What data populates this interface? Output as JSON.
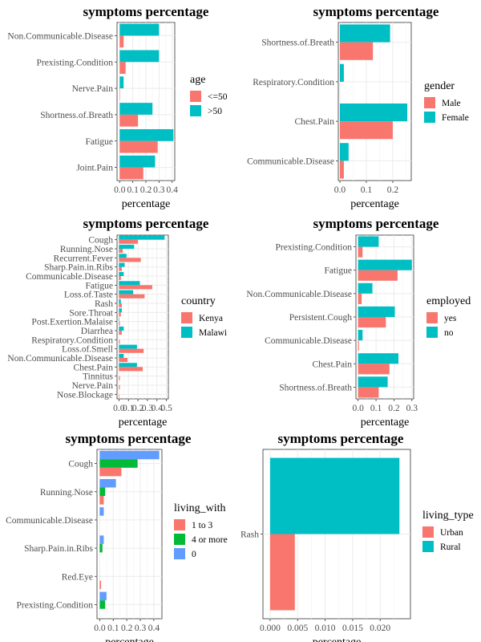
{
  "chart_data": [
    {
      "type": "bar",
      "orientation": "horizontal",
      "title": "symptoms percentage",
      "xlabel": "percentage",
      "ylabel": "",
      "xlim": [
        -0.02,
        0.42
      ],
      "xticks": [
        0.0,
        0.1,
        0.2,
        0.3,
        0.4
      ],
      "xtick_labels": [
        "0.0",
        "0.1",
        "0.2",
        "0.3",
        "0.4"
      ],
      "categories": [
        "Non.Communicable.Disease",
        "Prexisting.Condition",
        "Nerve.Pain",
        "Shortness.of.Breath",
        "Fatigue",
        "Joint.Pain"
      ],
      "legend_title": "age",
      "series": [
        {
          "name": "<=50",
          "color": "#F8766D",
          "values": [
            0.03,
            0.045,
            0.003,
            0.14,
            0.29,
            0.18
          ]
        },
        {
          "name": ">50",
          "color": "#00BFC4",
          "values": [
            0.3,
            0.3,
            0.03,
            0.25,
            0.41,
            0.27
          ]
        }
      ],
      "grid": true,
      "legend_position": "right"
    },
    {
      "type": "bar",
      "orientation": "horizontal",
      "title": "symptoms percentage",
      "xlabel": "percentage",
      "ylabel": "",
      "xlim": [
        -0.006,
        0.27
      ],
      "xticks": [
        0.0,
        0.1,
        0.2
      ],
      "xtick_labels": [
        "0.0",
        "0.1",
        "0.2"
      ],
      "categories": [
        "Shortness.of.Breath",
        "Respiratory.Condition",
        "Chest.Pain",
        "Communicable.Disease"
      ],
      "legend_title": "gender",
      "series": [
        {
          "name": "Male",
          "color": "#F8766D",
          "values": [
            0.125,
            0.0,
            0.2,
            0.015
          ]
        },
        {
          "name": "Female",
          "color": "#00BFC4",
          "values": [
            0.19,
            0.015,
            0.255,
            0.033
          ]
        }
      ],
      "grid": true,
      "legend_position": "right"
    },
    {
      "type": "bar",
      "orientation": "horizontal",
      "title": "symptoms percentage",
      "xlabel": "percentage",
      "ylabel": "",
      "xlim": [
        -0.02,
        0.52
      ],
      "xticks": [
        0.0,
        0.1,
        0.2,
        0.3,
        0.4,
        0.5
      ],
      "xtick_labels": [
        "0.0",
        "0.1",
        "0.2",
        "0.3",
        "0.4",
        "0.5"
      ],
      "categories": [
        "Cough",
        "Running.Nose",
        "Recurrent.Fever",
        "Sharp.Pain.in.Ribs",
        "Communicable.Disease",
        "Fatigue",
        "Loss.of.Taste",
        "Rash",
        "Sore.Throat",
        "Post.Exertion.Malaise",
        "Diarrhea",
        "Respiratory.Condition",
        "Loss.of.Smell",
        "Non.Communicable.Disease",
        "Chest.Pain",
        "Tinnitus",
        "Nerve.Pain",
        "Nose.Blockage"
      ],
      "legend_title": "country",
      "series": [
        {
          "name": "Kenya",
          "color": "#F8766D",
          "values": [
            0.2,
            0.04,
            0.23,
            0.03,
            0.02,
            0.35,
            0.27,
            0.03,
            0.02,
            0.01,
            0.03,
            0.01,
            0.26,
            0.09,
            0.25,
            0.01,
            0.01,
            0.005
          ]
        },
        {
          "name": "Malawi",
          "color": "#00BFC4",
          "values": [
            0.48,
            0.16,
            0.08,
            0.06,
            0.05,
            0.22,
            0.15,
            0.02,
            0.03,
            0.005,
            0.05,
            0.0,
            0.19,
            0.05,
            0.19,
            0.0,
            0.0,
            0.0
          ]
        }
      ],
      "grid": true,
      "legend_position": "right"
    },
    {
      "type": "bar",
      "orientation": "horizontal",
      "title": "symptoms percentage",
      "xlabel": "percentage",
      "ylabel": "",
      "xlim": [
        -0.012,
        0.31
      ],
      "xticks": [
        0.0,
        0.1,
        0.2,
        0.3
      ],
      "xtick_labels": [
        "0.0",
        "0.1",
        "0.2",
        "0.3"
      ],
      "categories": [
        "Prexisting.Condition",
        "Fatigue",
        "Non.Communicable.Disease",
        "Persistent.Cough",
        "Communicable.Disease",
        "Chest.Pain",
        "Shortness.of.Breath"
      ],
      "legend_title": "employed",
      "series": [
        {
          "name": "yes",
          "color": "#F8766D",
          "values": [
            0.025,
            0.22,
            0.02,
            0.155,
            0.005,
            0.175,
            0.115
          ]
        },
        {
          "name": "no",
          "color": "#00BFC4",
          "values": [
            0.115,
            0.3,
            0.08,
            0.205,
            0.025,
            0.225,
            0.165
          ]
        }
      ],
      "grid": true,
      "legend_position": "right"
    },
    {
      "type": "bar",
      "orientation": "horizontal",
      "title": "symptoms percentage",
      "xlabel": "percentage",
      "ylabel": "",
      "xlim": [
        -0.02,
        0.46
      ],
      "xticks": [
        0.0,
        0.1,
        0.2,
        0.3,
        0.4
      ],
      "xtick_labels": [
        "0.0",
        "0.1",
        "0.2",
        "0.3",
        "0.4"
      ],
      "categories": [
        "Cough",
        "Running.Nose",
        "Communicable.Disease",
        "Sharp.Pain.in.Ribs",
        "Red.Eye",
        "Prexisting.Condition"
      ],
      "legend_title": "living_with",
      "series": [
        {
          "name": "1 to 3",
          "color": "#F8766D",
          "values": [
            0.16,
            0.03,
            0.0,
            0.0,
            0.01,
            0.0
          ]
        },
        {
          "name": "4 or more",
          "color": "#00BA38",
          "values": [
            0.28,
            0.04,
            0.0,
            0.02,
            0.0,
            0.04
          ]
        },
        {
          "name": "0",
          "color": "#619CFF",
          "values": [
            0.44,
            0.12,
            0.03,
            0.03,
            0.0,
            0.05
          ]
        }
      ],
      "grid": true,
      "legend_position": "right"
    },
    {
      "type": "bar",
      "orientation": "horizontal",
      "title": "symptoms percentage",
      "xlabel": "percentage",
      "ylabel": "",
      "xlim": [
        -0.0013,
        0.0255
      ],
      "xticks": [
        0.0,
        0.005,
        0.01,
        0.015,
        0.02
      ],
      "xtick_labels": [
        "0.000",
        "0.005",
        "0.010",
        "0.015",
        "0.020"
      ],
      "categories": [
        "Rash"
      ],
      "legend_title": "living_type",
      "series": [
        {
          "name": "Urban",
          "color": "#F8766D",
          "values": [
            0.0045
          ]
        },
        {
          "name": "Rural",
          "color": "#00BFC4",
          "values": [
            0.0235
          ]
        }
      ],
      "grid": true,
      "legend_position": "right"
    }
  ]
}
